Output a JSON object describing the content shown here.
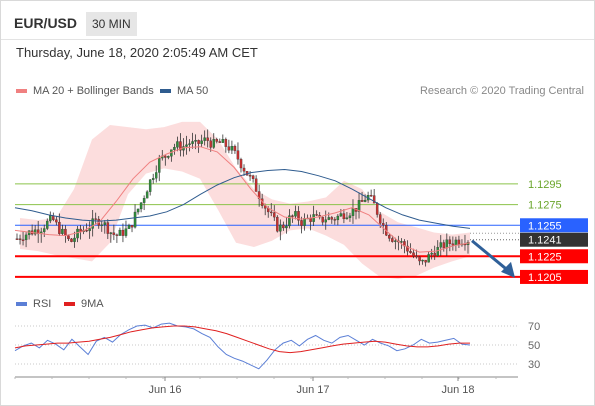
{
  "header": {
    "symbol": "EUR/USD",
    "timeframe": "30 MIN"
  },
  "datetime": "Thursday, June 18, 2020 2:05:49 AM CET",
  "legend": {
    "main": [
      {
        "name": "MA 20 + Bollinger Bands",
        "color": "#f08080"
      },
      {
        "name": "MA 50",
        "color": "#2f5c8f"
      }
    ],
    "rsi": [
      {
        "name": "RSI",
        "color": "#5b7fd6"
      },
      {
        "name": "9MA",
        "color": "#e02020"
      }
    ]
  },
  "credit": "Research © 2020 Trading Central",
  "colors": {
    "candle_up": "#2e8b3a",
    "candle_down": "#c53030",
    "green_level": "#8bc34a",
    "blue_level": "#2962ff",
    "red_level": "#ff0000",
    "current_price_bg": "#333333",
    "arrow": "#2f6099"
  },
  "chart_data": [
    {
      "type": "candlestick",
      "instrument": "EUR/USD",
      "timeframe": "30 MIN",
      "x_ticks": [
        "Jun 16",
        "Jun 17",
        "Jun 18"
      ],
      "levels": [
        {
          "value": 1.1295,
          "label": "1.1295",
          "kind": "resistance"
        },
        {
          "value": 1.1275,
          "label": "1.1275",
          "kind": "resistance"
        },
        {
          "value": 1.1255,
          "label": "1.1255",
          "kind": "pivot"
        },
        {
          "value": 1.1225,
          "label": "1.1225",
          "kind": "support"
        },
        {
          "value": 1.1205,
          "label": "1.1205",
          "kind": "support"
        }
      ],
      "current_price": {
        "value": 1.1241,
        "label": "1.1241"
      },
      "close_path": [
        1.1242,
        1.1245,
        1.1248,
        1.125,
        1.1252,
        1.1257,
        1.1261,
        1.1252,
        1.1245,
        1.1238,
        1.1246,
        1.125,
        1.1253,
        1.1258,
        1.126,
        1.1254,
        1.1247,
        1.1245,
        1.1249,
        1.1252,
        1.1266,
        1.1278,
        1.1292,
        1.1305,
        1.1318,
        1.1322,
        1.133,
        1.1332,
        1.1331,
        1.1335,
        1.1332,
        1.1336,
        1.1338,
        1.1333,
        1.1335,
        1.1333,
        1.1329,
        1.1322,
        1.1312,
        1.1303,
        1.1294,
        1.1282,
        1.1271,
        1.1262,
        1.1252,
        1.1255,
        1.1262,
        1.1264,
        1.1258,
        1.1261,
        1.1263,
        1.1259,
        1.1262,
        1.1261,
        1.1263,
        1.1266,
        1.1268,
        1.1271,
        1.1276,
        1.1284,
        1.1277,
        1.1264,
        1.1251,
        1.1244,
        1.124,
        1.1237,
        1.1231,
        1.1224,
        1.1217,
        1.1222,
        1.1229,
        1.1232,
        1.1236,
        1.1238,
        1.124,
        1.1241,
        1.1241
      ],
      "ma50_path": [
        1.1272,
        1.1269,
        1.1265,
        1.1262,
        1.126,
        1.1259,
        1.126,
        1.1262,
        1.1264,
        1.1268,
        1.1275,
        1.1285,
        1.1294,
        1.1301,
        1.1306,
        1.1308,
        1.1309,
        1.1307,
        1.1303,
        1.1298,
        1.129,
        1.1281,
        1.1272,
        1.1265,
        1.126,
        1.1257,
        1.1254,
        1.1252
      ],
      "ma20_path": [
        1.125,
        1.1248,
        1.1246,
        1.1245,
        1.1249,
        1.1258,
        1.1278,
        1.13,
        1.1316,
        1.1324,
        1.133,
        1.1331,
        1.1326,
        1.1311,
        1.129,
        1.1272,
        1.1263,
        1.1261,
        1.1263,
        1.1267,
        1.1272,
        1.1265,
        1.125,
        1.1236,
        1.1229,
        1.123,
        1.1235,
        1.1238
      ],
      "bb_upper_path": [
        1.1262,
        1.126,
        1.1262,
        1.129,
        1.1338,
        1.1352,
        1.135,
        1.1348,
        1.135,
        1.1355,
        1.1355,
        1.1338,
        1.131,
        1.129,
        1.128,
        1.1276,
        1.1278,
        1.1282,
        1.1298,
        1.129,
        1.1268,
        1.1258,
        1.1253,
        1.1248,
        1.1246,
        1.1248
      ],
      "bb_lower_path": [
        1.1232,
        1.123,
        1.1226,
        1.1223,
        1.122,
        1.1238,
        1.1285,
        1.1305,
        1.131,
        1.1307,
        1.13,
        1.127,
        1.1238,
        1.1234,
        1.124,
        1.125,
        1.1252,
        1.1245,
        1.1236,
        1.1218,
        1.1205,
        1.1203,
        1.1206,
        1.1214,
        1.122,
        1.1225
      ]
    },
    {
      "type": "line",
      "title": "RSI",
      "y_ticks": [
        70,
        50,
        30
      ],
      "ylim": [
        20,
        78
      ],
      "series": [
        {
          "name": "RSI",
          "color": "#5b7fd6",
          "values": [
            44,
            49,
            52,
            47,
            55,
            51,
            45,
            56,
            48,
            40,
            54,
            58,
            53,
            61,
            66,
            70,
            71,
            68,
            72,
            73,
            70,
            69,
            67,
            62,
            58,
            48,
            40,
            36,
            33,
            29,
            25,
            34,
            45,
            52,
            55,
            49,
            56,
            60,
            55,
            52,
            58,
            60,
            55,
            50,
            56,
            52,
            49,
            44,
            46,
            50,
            56,
            52,
            53,
            55,
            57,
            51,
            50
          ]
        },
        {
          "name": "9MA",
          "color": "#e02020",
          "values": [
            47,
            49,
            50,
            51,
            52,
            52,
            53,
            54,
            56,
            58,
            61,
            64,
            66,
            68,
            69,
            70,
            70,
            69,
            67,
            65,
            62,
            58,
            54,
            50,
            46,
            43,
            42,
            43,
            45,
            47,
            49,
            51,
            52,
            53,
            54,
            53,
            51,
            49,
            48,
            48,
            49,
            51,
            52,
            52
          ]
        }
      ]
    }
  ]
}
